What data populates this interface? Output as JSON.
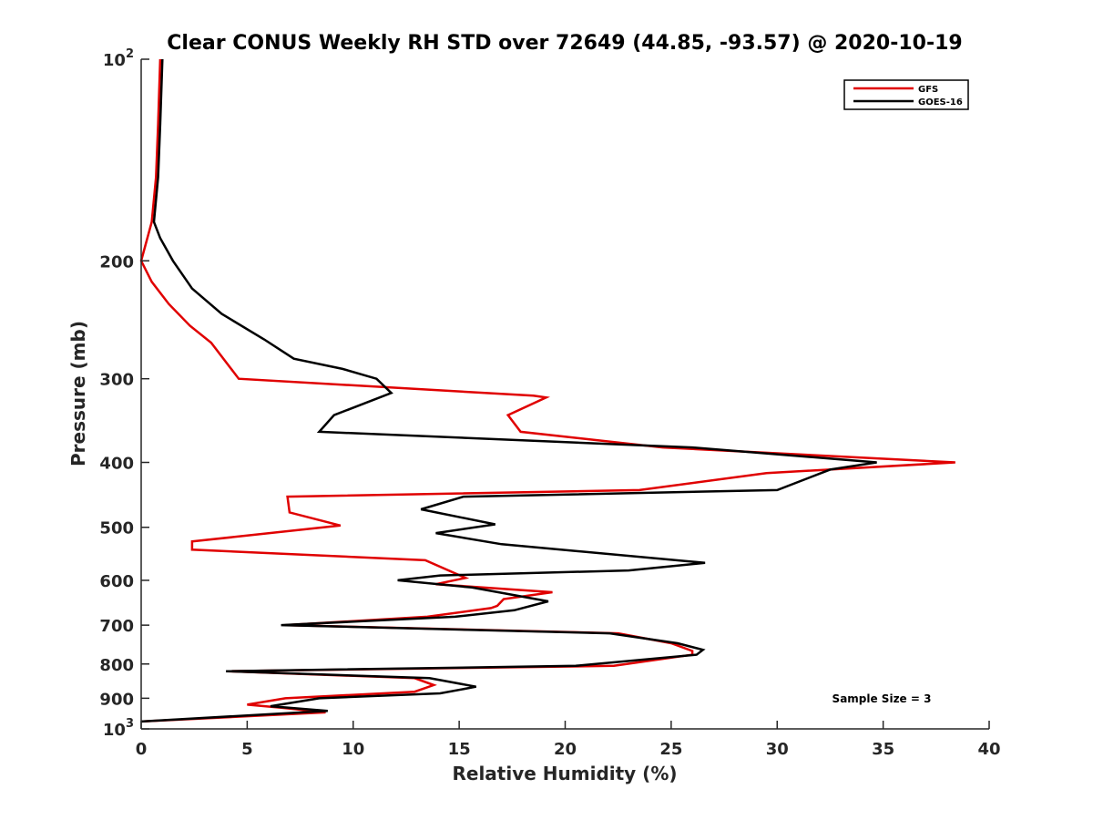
{
  "chart_data": {
    "type": "line",
    "title": "Clear CONUS Weekly RH STD over 72649 (44.85, -93.57) @ 2020-10-19",
    "xlabel": "Relative Humidity (%)",
    "ylabel": "Pressure (mb)",
    "xlim": [
      0,
      40
    ],
    "ylim": [
      100,
      1000
    ],
    "y_scale": "log",
    "y_reversed": true,
    "x_ticks": [
      "0",
      "5",
      "10",
      "15",
      "20",
      "25",
      "30",
      "35",
      "40"
    ],
    "y_tick_labels": [
      {
        "p": 100,
        "base": "10",
        "exp": "2"
      },
      {
        "p": 200,
        "base": "200",
        "exp": ""
      },
      {
        "p": 300,
        "base": "300",
        "exp": ""
      },
      {
        "p": 400,
        "base": "400",
        "exp": ""
      },
      {
        "p": 500,
        "base": "500",
        "exp": ""
      },
      {
        "p": 600,
        "base": "600",
        "exp": ""
      },
      {
        "p": 700,
        "base": "700",
        "exp": ""
      },
      {
        "p": 800,
        "base": "800",
        "exp": ""
      },
      {
        "p": 900,
        "base": "900",
        "exp": ""
      },
      {
        "p": 1000,
        "base": "10",
        "exp": "3"
      }
    ],
    "legend_position": "top-right",
    "annotation": "Sample Size = 3",
    "grid": false,
    "series": [
      {
        "name": "GFS",
        "color": "#e00000",
        "points": [
          [
            0.9,
            100
          ],
          [
            0.8,
            125
          ],
          [
            0.7,
            150
          ],
          [
            0.5,
            175
          ],
          [
            0.0,
            200
          ],
          [
            0.5,
            215
          ],
          [
            1.3,
            232
          ],
          [
            2.3,
            250
          ],
          [
            3.3,
            265
          ],
          [
            4.6,
            300
          ],
          [
            18.5,
            318
          ],
          [
            19.1,
            320
          ],
          [
            17.3,
            340
          ],
          [
            17.9,
            360
          ],
          [
            24.6,
            380
          ],
          [
            38.4,
            400
          ],
          [
            29.5,
            415
          ],
          [
            23.5,
            440
          ],
          [
            6.9,
            450
          ],
          [
            7.0,
            475
          ],
          [
            9.4,
            497
          ],
          [
            2.4,
            525
          ],
          [
            2.4,
            540
          ],
          [
            13.4,
            560
          ],
          [
            15.3,
            595
          ],
          [
            13.9,
            608
          ],
          [
            19.4,
            625
          ],
          [
            17.1,
            640
          ],
          [
            16.8,
            655
          ],
          [
            16.5,
            660
          ],
          [
            13.5,
            680
          ],
          [
            6.8,
            700
          ],
          [
            22.5,
            720
          ],
          [
            25.0,
            745
          ],
          [
            26.0,
            765
          ],
          [
            26.0,
            775
          ],
          [
            22.3,
            805
          ],
          [
            4.1,
            820
          ],
          [
            12.9,
            840
          ],
          [
            13.8,
            860
          ],
          [
            12.9,
            880
          ],
          [
            6.8,
            900
          ],
          [
            5.0,
            920
          ],
          [
            6.6,
            930
          ],
          [
            8.7,
            945
          ],
          [
            0.0,
            975
          ]
        ]
      },
      {
        "name": "GOES-16",
        "color": "#000000",
        "points": [
          [
            1.0,
            100
          ],
          [
            0.9,
            125
          ],
          [
            0.8,
            150
          ],
          [
            0.6,
            175
          ],
          [
            0.9,
            185
          ],
          [
            1.5,
            200
          ],
          [
            2.4,
            220
          ],
          [
            3.8,
            240
          ],
          [
            5.8,
            262
          ],
          [
            7.2,
            280
          ],
          [
            9.5,
            290
          ],
          [
            11.1,
            300
          ],
          [
            11.8,
            315
          ],
          [
            9.1,
            340
          ],
          [
            8.4,
            360
          ],
          [
            26.0,
            380
          ],
          [
            34.7,
            400
          ],
          [
            32.5,
            410
          ],
          [
            30.0,
            440
          ],
          [
            15.2,
            450
          ],
          [
            13.2,
            470
          ],
          [
            16.7,
            495
          ],
          [
            13.9,
            510
          ],
          [
            17.0,
            530
          ],
          [
            26.6,
            565
          ],
          [
            23.0,
            580
          ],
          [
            14.1,
            590
          ],
          [
            12.1,
            600
          ],
          [
            15.6,
            615
          ],
          [
            19.2,
            645
          ],
          [
            17.6,
            665
          ],
          [
            14.8,
            680
          ],
          [
            6.6,
            700
          ],
          [
            22.1,
            720
          ],
          [
            25.3,
            745
          ],
          [
            26.5,
            762
          ],
          [
            26.2,
            775
          ],
          [
            20.5,
            805
          ],
          [
            4.0,
            820
          ],
          [
            13.6,
            840
          ],
          [
            15.8,
            865
          ],
          [
            14.1,
            885
          ],
          [
            8.4,
            900
          ],
          [
            6.1,
            925
          ],
          [
            8.8,
            940
          ],
          [
            0.0,
            975
          ]
        ]
      }
    ]
  }
}
